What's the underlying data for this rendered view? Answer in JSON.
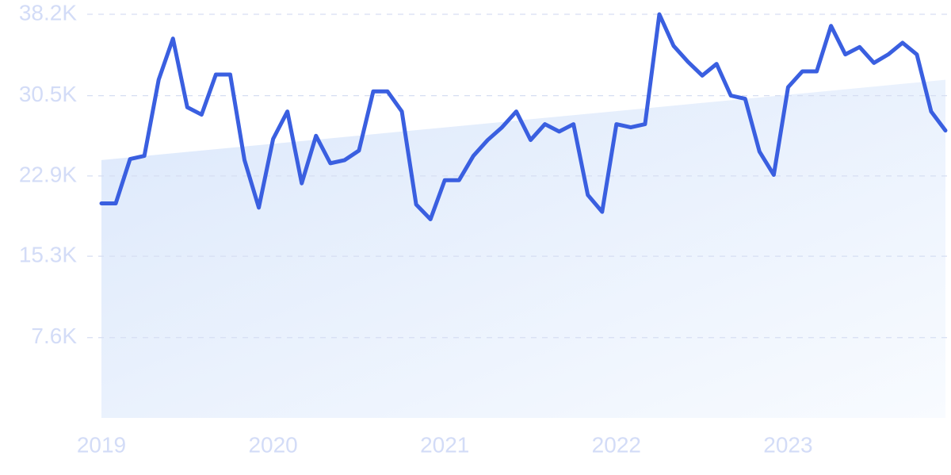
{
  "chart_data": {
    "type": "line",
    "categories": [
      "2019",
      null,
      null,
      null,
      null,
      null,
      null,
      null,
      null,
      null,
      null,
      null,
      "2020",
      null,
      null,
      null,
      null,
      null,
      null,
      null,
      null,
      null,
      null,
      null,
      "2021",
      null,
      null,
      null,
      null,
      null,
      null,
      null,
      null,
      null,
      null,
      null,
      "2022",
      null,
      null,
      null,
      null,
      null,
      null,
      null,
      null,
      null,
      null,
      null,
      "2023",
      null,
      null,
      null,
      null,
      null,
      null,
      null,
      null,
      null,
      null,
      null
    ],
    "series": [
      {
        "color": "#3a5fe0",
        "values": [
          20300,
          20300,
          24500,
          24800,
          32000,
          35900,
          29400,
          28700,
          32500,
          32500,
          24400,
          19900,
          26400,
          29000,
          22200,
          26700,
          24100,
          24400,
          25300,
          30900,
          30900,
          29000,
          20200,
          18800,
          22500,
          22500,
          24800,
          26300,
          27500,
          29000,
          26300,
          27800,
          27100,
          27800,
          21100,
          19500,
          27800,
          27500,
          27800,
          38200,
          35200,
          33700,
          32400,
          33500,
          30500,
          30200,
          25200,
          23000,
          31300,
          32800,
          32800,
          37100,
          34400,
          35100,
          33600,
          34400,
          35500,
          34400,
          29000,
          27200
        ]
      }
    ],
    "trend": [
      24400,
      32000
    ],
    "ylim": [
      0,
      38200
    ],
    "yticks": [
      {
        "value": 7600,
        "label": "7.6K"
      },
      {
        "value": 15300,
        "label": "15.3K"
      },
      {
        "value": 22900,
        "label": "22.9K"
      },
      {
        "value": 30500,
        "label": "30.5K"
      },
      {
        "value": 38200,
        "label": "38.2K"
      }
    ],
    "grid": true
  }
}
